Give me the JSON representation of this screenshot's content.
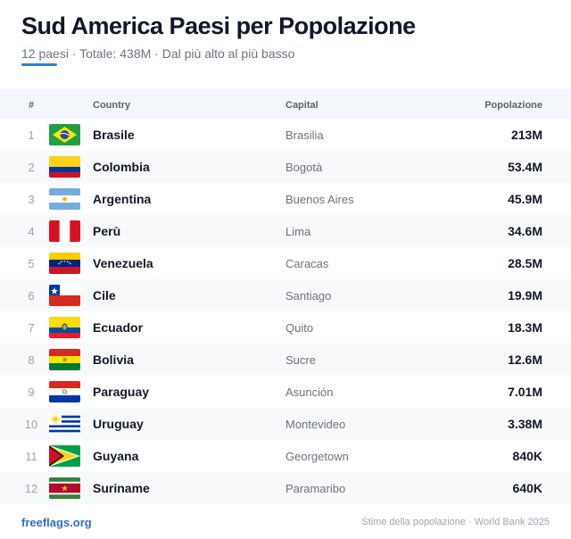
{
  "header": {
    "title": "Sud America Paesi per Popolazione",
    "subtitle": "12 paesi · Totale: 438M · Dal più alto al più basso"
  },
  "colors": {
    "accent": "#3b7dd8",
    "link": "#2f6fce"
  },
  "table": {
    "columns": {
      "num": "#",
      "country": "Country",
      "capital": "Capital",
      "population": "Popolazione"
    },
    "rows": [
      {
        "rank": "1",
        "flag": "brazil-flag-icon",
        "country": "Brasile",
        "capital": "Brasilia",
        "population": "213M"
      },
      {
        "rank": "2",
        "flag": "colombia-flag-icon",
        "country": "Colombia",
        "capital": "Bogotà",
        "population": "53.4M"
      },
      {
        "rank": "3",
        "flag": "argentina-flag-icon",
        "country": "Argentina",
        "capital": "Buenos Aires",
        "population": "45.9M"
      },
      {
        "rank": "4",
        "flag": "peru-flag-icon",
        "country": "Perù",
        "capital": "Lima",
        "population": "34.6M"
      },
      {
        "rank": "5",
        "flag": "venezuela-flag-icon",
        "country": "Venezuela",
        "capital": "Caracas",
        "population": "28.5M"
      },
      {
        "rank": "6",
        "flag": "chile-flag-icon",
        "country": "Cile",
        "capital": "Santiago",
        "population": "19.9M"
      },
      {
        "rank": "7",
        "flag": "ecuador-flag-icon",
        "country": "Ecuador",
        "capital": "Quito",
        "population": "18.3M"
      },
      {
        "rank": "8",
        "flag": "bolivia-flag-icon",
        "country": "Bolivia",
        "capital": "Sucre",
        "population": "12.6M"
      },
      {
        "rank": "9",
        "flag": "paraguay-flag-icon",
        "country": "Paraguay",
        "capital": "Asunción",
        "population": "7.01M"
      },
      {
        "rank": "10",
        "flag": "uruguay-flag-icon",
        "country": "Uruguay",
        "capital": "Montevideo",
        "population": "3.38M"
      },
      {
        "rank": "11",
        "flag": "guyana-flag-icon",
        "country": "Guyana",
        "capital": "Georgetown",
        "population": "840K"
      },
      {
        "rank": "12",
        "flag": "suriname-flag-icon",
        "country": "Suriname",
        "capital": "Paramaribo",
        "population": "640K"
      }
    ]
  },
  "footer": {
    "site": "freeflags.org",
    "source": "Stime della popolazione · World Bank 2025"
  }
}
